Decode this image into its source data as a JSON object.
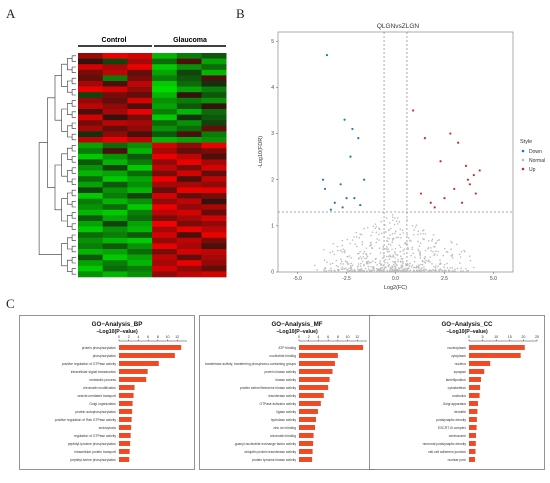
{
  "panels": {
    "a": "A",
    "b": "B",
    "c": "C"
  },
  "heatmap": {
    "group_labels": [
      "Control",
      "Glaucoma"
    ],
    "rows": 40,
    "cols": 6,
    "values": [
      [
        0.55,
        0.9,
        0.8,
        -0.8,
        -0.5,
        -0.3
      ],
      [
        0.1,
        -0.2,
        0.6,
        -0.4,
        0.2,
        -0.7
      ],
      [
        0.8,
        0.6,
        0.9,
        -0.9,
        -0.6,
        -0.4
      ],
      [
        0.4,
        0.7,
        0.3,
        -0.7,
        -0.2,
        -0.8
      ],
      [
        0.3,
        -0.5,
        0.4,
        -0.5,
        -0.3,
        0.2
      ],
      [
        0.6,
        0.2,
        0.7,
        -0.9,
        -0.4,
        -0.1
      ],
      [
        0.9,
        0.8,
        0.5,
        -1.0,
        -0.7,
        -0.5
      ],
      [
        -0.2,
        0.4,
        0.3,
        -0.8,
        0.1,
        -0.3
      ],
      [
        0.5,
        0.3,
        0.8,
        -0.6,
        -0.5,
        -0.6
      ],
      [
        0.7,
        0.5,
        0.2,
        -0.7,
        -0.3,
        0.1
      ],
      [
        0.2,
        0.6,
        0.9,
        -0.5,
        -0.8,
        -0.4
      ],
      [
        0.8,
        0.1,
        0.4,
        -0.9,
        -0.1,
        -0.3
      ],
      [
        0.4,
        0.7,
        0.6,
        -0.4,
        -0.6,
        -0.2
      ],
      [
        0.6,
        0.3,
        0.5,
        -0.6,
        -0.4,
        0.3
      ],
      [
        -0.1,
        0.5,
        0.2,
        -0.3,
        0.2,
        -0.5
      ],
      [
        0.7,
        0.9,
        0.7,
        -0.8,
        -0.7,
        -0.6
      ],
      [
        -0.7,
        -0.4,
        -0.6,
        0.8,
        0.5,
        0.9
      ],
      [
        -0.5,
        0.2,
        -0.8,
        0.6,
        0.3,
        0.4
      ],
      [
        -0.9,
        -0.6,
        -0.3,
        0.9,
        0.7,
        0.2
      ],
      [
        -0.3,
        -0.8,
        -0.5,
        0.5,
        0.9,
        0.6
      ],
      [
        -0.6,
        -0.2,
        -0.9,
        0.7,
        0.4,
        0.8
      ],
      [
        -0.8,
        -0.7,
        -0.4,
        0.4,
        0.8,
        0.3
      ],
      [
        -0.4,
        -0.9,
        -0.7,
        0.9,
        0.2,
        0.7
      ],
      [
        -0.7,
        -0.3,
        -0.6,
        0.6,
        0.6,
        0.5
      ],
      [
        -0.2,
        -0.6,
        -0.8,
        0.3,
        0.9,
        0.9
      ],
      [
        -0.9,
        -0.5,
        -0.2,
        0.8,
        0.3,
        0.4
      ],
      [
        -0.5,
        -0.8,
        -0.6,
        0.5,
        0.7,
        0.1
      ],
      [
        -0.6,
        -0.4,
        -0.9,
        0.9,
        0.5,
        0.6
      ],
      [
        -0.8,
        -0.9,
        -0.5,
        0.7,
        0.8,
        0.3
      ],
      [
        -0.3,
        -0.7,
        -0.4,
        0.4,
        0.6,
        0.8
      ],
      [
        -0.7,
        -0.2,
        -0.7,
        0.95,
        0.4,
        0.5
      ],
      [
        -0.9,
        -0.6,
        -0.8,
        0.6,
        0.9,
        0.7
      ],
      [
        -0.4,
        -0.5,
        -0.3,
        0.8,
        0.2,
        0.9
      ],
      [
        -0.6,
        -0.8,
        -0.9,
        0.5,
        0.7,
        0.4
      ],
      [
        -0.5,
        -0.3,
        -0.6,
        0.9,
        0.6,
        0.2
      ],
      [
        -0.8,
        -0.7,
        -0.4,
        0.4,
        0.8,
        0.7
      ],
      [
        -0.3,
        -0.9,
        -0.7,
        0.7,
        0.3,
        0.6
      ],
      [
        -0.7,
        -0.5,
        -0.8,
        0.6,
        0.9,
        0.5
      ],
      [
        -0.9,
        -0.4,
        -0.5,
        0.8,
        0.5,
        0.3
      ],
      [
        -0.6,
        -0.8,
        -0.6,
        0.5,
        0.7,
        0.8
      ]
    ]
  },
  "chart_data": [
    {
      "type": "scatter",
      "title": "QLGNvsZLGN",
      "xlabel": "Log2(FC)",
      "ylabel": "-Log10(FDR)",
      "xlim": [
        -6,
        6
      ],
      "ylim": [
        0,
        5.2
      ],
      "xticks": [
        -5,
        -2.5,
        0,
        2.5,
        5
      ],
      "xtick_labels": [
        "-5.0",
        "-2.5",
        "0.0",
        "2.5",
        "5.0"
      ],
      "yticks": [
        0,
        1,
        2,
        3,
        4,
        5
      ],
      "vlines": [
        -0.585,
        0.585
      ],
      "hline": 1.3,
      "legend": {
        "title": "Style",
        "items": [
          "Down",
          "Normal",
          "Up"
        ],
        "position": "right"
      },
      "colors": {
        "Down": "#1f77b4",
        "Normal": "#bdbdbd",
        "Up": "#d62728"
      },
      "down": [
        [
          -3.5,
          4.7
        ],
        [
          -2.6,
          3.3
        ],
        [
          -2.2,
          3.1
        ],
        [
          -1.9,
          2.9
        ],
        [
          -3.7,
          2.0
        ],
        [
          -2.3,
          2.5
        ],
        [
          -1.6,
          2.0
        ],
        [
          -2.8,
          1.9
        ],
        [
          -3.1,
          1.5
        ],
        [
          -2.5,
          1.6
        ],
        [
          -3.3,
          1.35
        ],
        [
          -2.1,
          1.6
        ],
        [
          -1.8,
          1.45
        ],
        [
          -2.7,
          1.4
        ],
        [
          -3.6,
          1.8
        ]
      ],
      "up": [
        [
          0.9,
          3.5
        ],
        [
          1.5,
          2.9
        ],
        [
          2.8,
          3.0
        ],
        [
          3.2,
          2.8
        ],
        [
          3.6,
          2.3
        ],
        [
          4.0,
          2.1
        ],
        [
          3.0,
          1.8
        ],
        [
          2.3,
          2.4
        ],
        [
          1.8,
          1.5
        ],
        [
          2.5,
          1.6
        ],
        [
          3.8,
          1.9
        ],
        [
          4.1,
          1.7
        ],
        [
          1.3,
          1.7
        ],
        [
          3.4,
          1.5
        ],
        [
          2.0,
          1.4
        ],
        [
          3.7,
          2.0
        ],
        [
          4.3,
          2.2
        ]
      ],
      "normal_count": 600
    },
    {
      "type": "bar",
      "title": "GO−Analysis_BP",
      "xlabel": "−Log10(P−value)",
      "xlim": [
        0,
        14
      ],
      "xticks": [
        0,
        2,
        4,
        6,
        8,
        10,
        12
      ],
      "categories": [
        "protein phosphorylation",
        "phosphorylation",
        "positive regulation of GTPase activity",
        "intracellular signal transduction",
        "metabolic process",
        "chromatin modification",
        "vesicle-mediated transport",
        "Golgi organization",
        "protein autophosphorylation",
        "positive regulation of Rab GTPase activity",
        "endocytosis",
        "regulation of GTPase activity",
        "peptidyl-tyrosine phosphorylation",
        "intracellular protein transport",
        "peptidyl-serine phosphorylation"
      ],
      "values": [
        12.8,
        11.5,
        8.2,
        5.9,
        5.6,
        3.2,
        3.0,
        2.8,
        2.7,
        2.6,
        2.5,
        2.4,
        2.3,
        2.2,
        2.1
      ]
    },
    {
      "type": "bar",
      "title": "GO−Analysis_MF",
      "xlabel": "−Log10(P−value)",
      "xlim": [
        0,
        14
      ],
      "xticks": [
        0,
        2,
        4,
        6,
        8,
        10,
        12
      ],
      "categories": [
        "ATP binding",
        "nucleotide binding",
        "transferase activity, transferring phosphorus-containing groups",
        "protein kinase activity",
        "kinase activity",
        "protein serine/threonine kinase activity",
        "transferase activity",
        "GTPase activator activity",
        "ligase activity",
        "hydrolase activity",
        "zinc ion binding",
        "chromatin binding",
        "guanyl-nucleotide exchange factor activity",
        "ubiquitin protein transferase activity",
        "protein tyrosine kinase activity"
      ],
      "values": [
        13.2,
        8.0,
        7.4,
        6.9,
        6.3,
        6.0,
        5.1,
        4.5,
        3.9,
        3.5,
        3.3,
        3.0,
        2.9,
        2.8,
        2.7
      ]
    },
    {
      "type": "bar",
      "title": "GO−Analysis_CC",
      "xlabel": "−Log10(P−value)",
      "xlim": [
        0,
        25
      ],
      "xticks": [
        0,
        5,
        10,
        15,
        20,
        25
      ],
      "categories": [
        "nucleoplasm",
        "cytoplasm",
        "nucleus",
        "synapse",
        "lamellipodium",
        "cytoskeleton",
        "nucleolus",
        "Golgi apparatus",
        "dendrite",
        "postsynaptic density",
        "ESCRT-III complex",
        "centrosome",
        "neuronal postsynaptic density",
        "cell-cell adherens junction",
        "nuclear pore"
      ],
      "values": [
        20.5,
        19.0,
        7.8,
        5.6,
        4.4,
        4.1,
        3.9,
        3.3,
        3.1,
        2.9,
        2.8,
        2.6,
        2.5,
        2.4,
        2.2
      ]
    }
  ]
}
